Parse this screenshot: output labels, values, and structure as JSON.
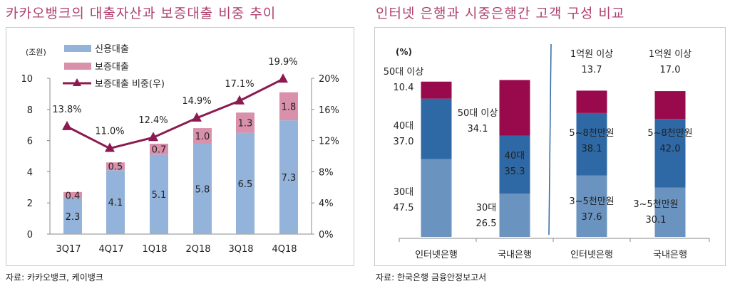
{
  "left": {
    "title": "카카오뱅크의 대출자산과 보증대출 비중 추이",
    "source": "자료: 카카오뱅크, 케이뱅크"
  },
  "right": {
    "title": "인터넷 은행과 시중은행간 고객 구성 비교",
    "source": "자료: 한국은행 금융안정보고서"
  },
  "chart_data": [
    {
      "type": "bar",
      "stacked": true,
      "unit_label": "(조원)",
      "categories": [
        "3Q17",
        "4Q17",
        "1Q18",
        "2Q18",
        "3Q18",
        "4Q18"
      ],
      "series": [
        {
          "name": "신용대출",
          "values": [
            2.3,
            4.1,
            5.1,
            5.8,
            6.5,
            7.3
          ],
          "color": "#94b3da"
        },
        {
          "name": "보증대출",
          "values": [
            0.4,
            0.5,
            0.7,
            1.0,
            1.3,
            1.8
          ],
          "color": "#d990aa"
        },
        {
          "name": "보증대출 비중(우)",
          "type": "line",
          "axis": "right",
          "values": [
            13.8,
            11.0,
            12.4,
            14.9,
            17.1,
            19.9
          ],
          "labels": [
            "13.8%",
            "11.0%",
            "12.4%",
            "14.9%",
            "17.1%",
            "19.9%"
          ],
          "color": "#8c1a50"
        }
      ],
      "ylim": [
        0,
        10
      ],
      "yticks": [
        "0",
        "2",
        "4",
        "6",
        "8",
        "10"
      ],
      "y2lim": [
        0,
        20
      ],
      "y2ticks": [
        "0%",
        "4%",
        "8%",
        "12%",
        "16%",
        "20%"
      ],
      "legend": "top-left"
    },
    {
      "type": "bar",
      "stacked": true,
      "unit_label": "(%)",
      "categories": [
        "인터넷은행",
        "국내은행",
        "인터넷은행",
        "국내은행"
      ],
      "groups": [
        "age",
        "age",
        "income",
        "income"
      ],
      "segments": [
        [
          {
            "name": "30대",
            "value": 47.5,
            "label": "30대",
            "num": "47.5"
          },
          {
            "name": "40대",
            "value": 37.0,
            "label": "40대",
            "num": "37.0"
          },
          {
            "name": "50대 이상",
            "value": 10.4,
            "label": "50대 이상",
            "num": "10.4"
          }
        ],
        [
          {
            "name": "30대",
            "value": 26.5,
            "label": "30대",
            "num": "26.5"
          },
          {
            "name": "40대",
            "value": 35.3,
            "label": "40대",
            "num": "35.3"
          },
          {
            "name": "50대 이상",
            "value": 34.1,
            "label": "50대 이상",
            "num": "34.1"
          }
        ],
        [
          {
            "name": "3~5천만원",
            "value": 37.6,
            "label": "3~5천만원",
            "num": "37.6"
          },
          {
            "name": "5~8천만원",
            "value": 38.1,
            "label": "5~8천만원",
            "num": "38.1"
          },
          {
            "name": "1억원 이상",
            "value": 13.7,
            "label": "1억원 이상",
            "num": "13.7"
          }
        ],
        [
          {
            "name": "3~5천만원",
            "value": 30.1,
            "label": "3~5천만원",
            "num": "30.1"
          },
          {
            "name": "5~8천만원",
            "value": 42.0,
            "label": "5~8천만원",
            "num": "42.0"
          },
          {
            "name": "1억원 이상",
            "value": 17.0,
            "label": "1억원 이상",
            "num": "17.0"
          }
        ]
      ],
      "colors": [
        "#6b93c0",
        "#2e68a5",
        "#990a4c"
      ]
    }
  ]
}
